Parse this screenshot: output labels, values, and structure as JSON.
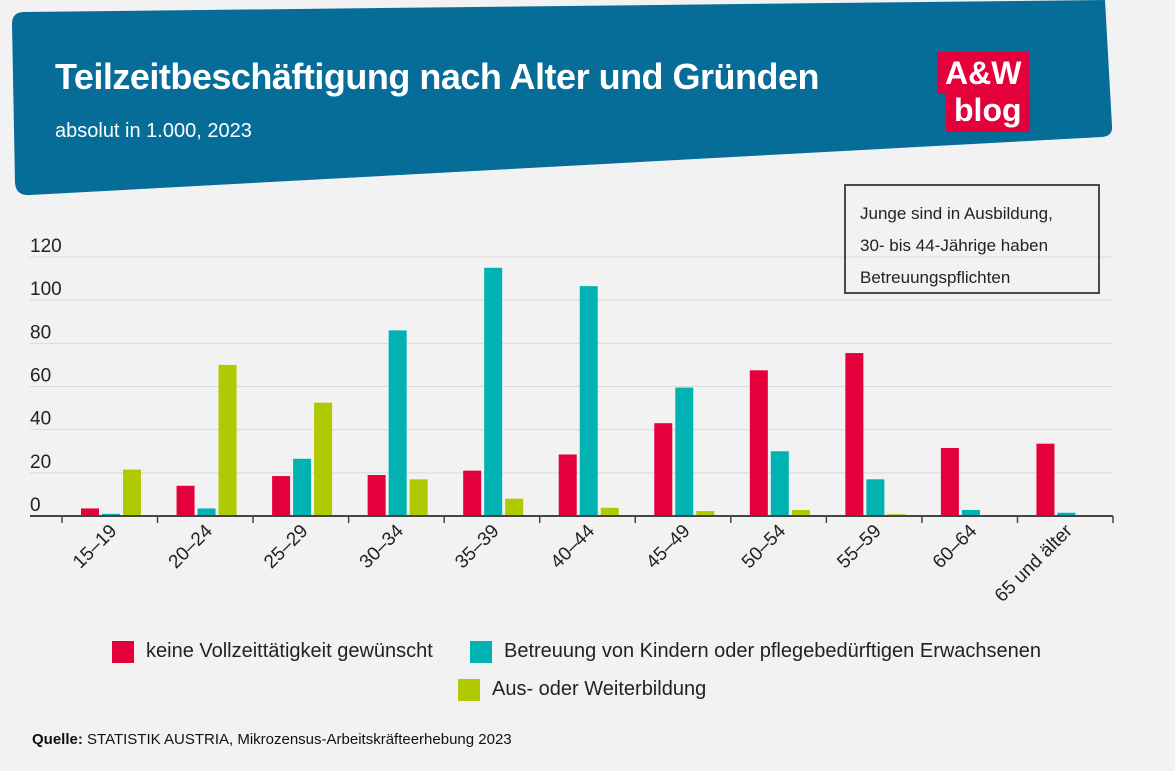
{
  "header": {
    "title": "Teilzeitbeschäftigung nach Alter und Gründen",
    "subtitle": "absolut in 1.000, 2023",
    "logo_line1": "A&W",
    "logo_line2": "blog"
  },
  "note": {
    "lines": [
      "Junge sind in Ausbildung,",
      "30- bis 44-Jährige haben",
      "Betreuungspflichten"
    ]
  },
  "colors": {
    "banner": "#066d98",
    "series1": "#e4003a",
    "series2": "#00b2b2",
    "series3": "#b0c900"
  },
  "chart_data": {
    "type": "bar",
    "title": "Teilzeitbeschäftigung nach Alter und Gründen",
    "subtitle": "absolut in 1.000, 2023",
    "xlabel": "",
    "ylabel": "",
    "ylim": [
      0,
      120
    ],
    "yticks": [
      0,
      20,
      40,
      60,
      80,
      100,
      120
    ],
    "grid": true,
    "legend_position": "bottom",
    "categories": [
      "15–19",
      "20–24",
      "25–29",
      "30–34",
      "35–39",
      "40–44",
      "45–49",
      "50–54",
      "55–59",
      "60–64",
      "65 und älter"
    ],
    "series": [
      {
        "name": "keine Vollzeittätigkeit gewünscht",
        "values": [
          3.5,
          14,
          18.5,
          19,
          21,
          28.5,
          43,
          67.5,
          75.5,
          31.5,
          33.5
        ]
      },
      {
        "name": "Betreuung von Kindern oder pflegebedürftigen Erwachsenen",
        "values": [
          1,
          3.5,
          26.5,
          86,
          115,
          106.5,
          59.5,
          30,
          17,
          2.8,
          1.5
        ]
      },
      {
        "name": "Aus- oder Weiterbildung",
        "values": [
          21.5,
          70,
          52.5,
          17,
          8,
          3.8,
          2.3,
          2.8,
          0.8,
          0.5,
          0.3
        ]
      }
    ]
  },
  "source": {
    "label": "Quelle:",
    "text": " STATISTIK AUSTRIA, Mikrozensus-Arbeitskräfteerhebung 2023"
  }
}
